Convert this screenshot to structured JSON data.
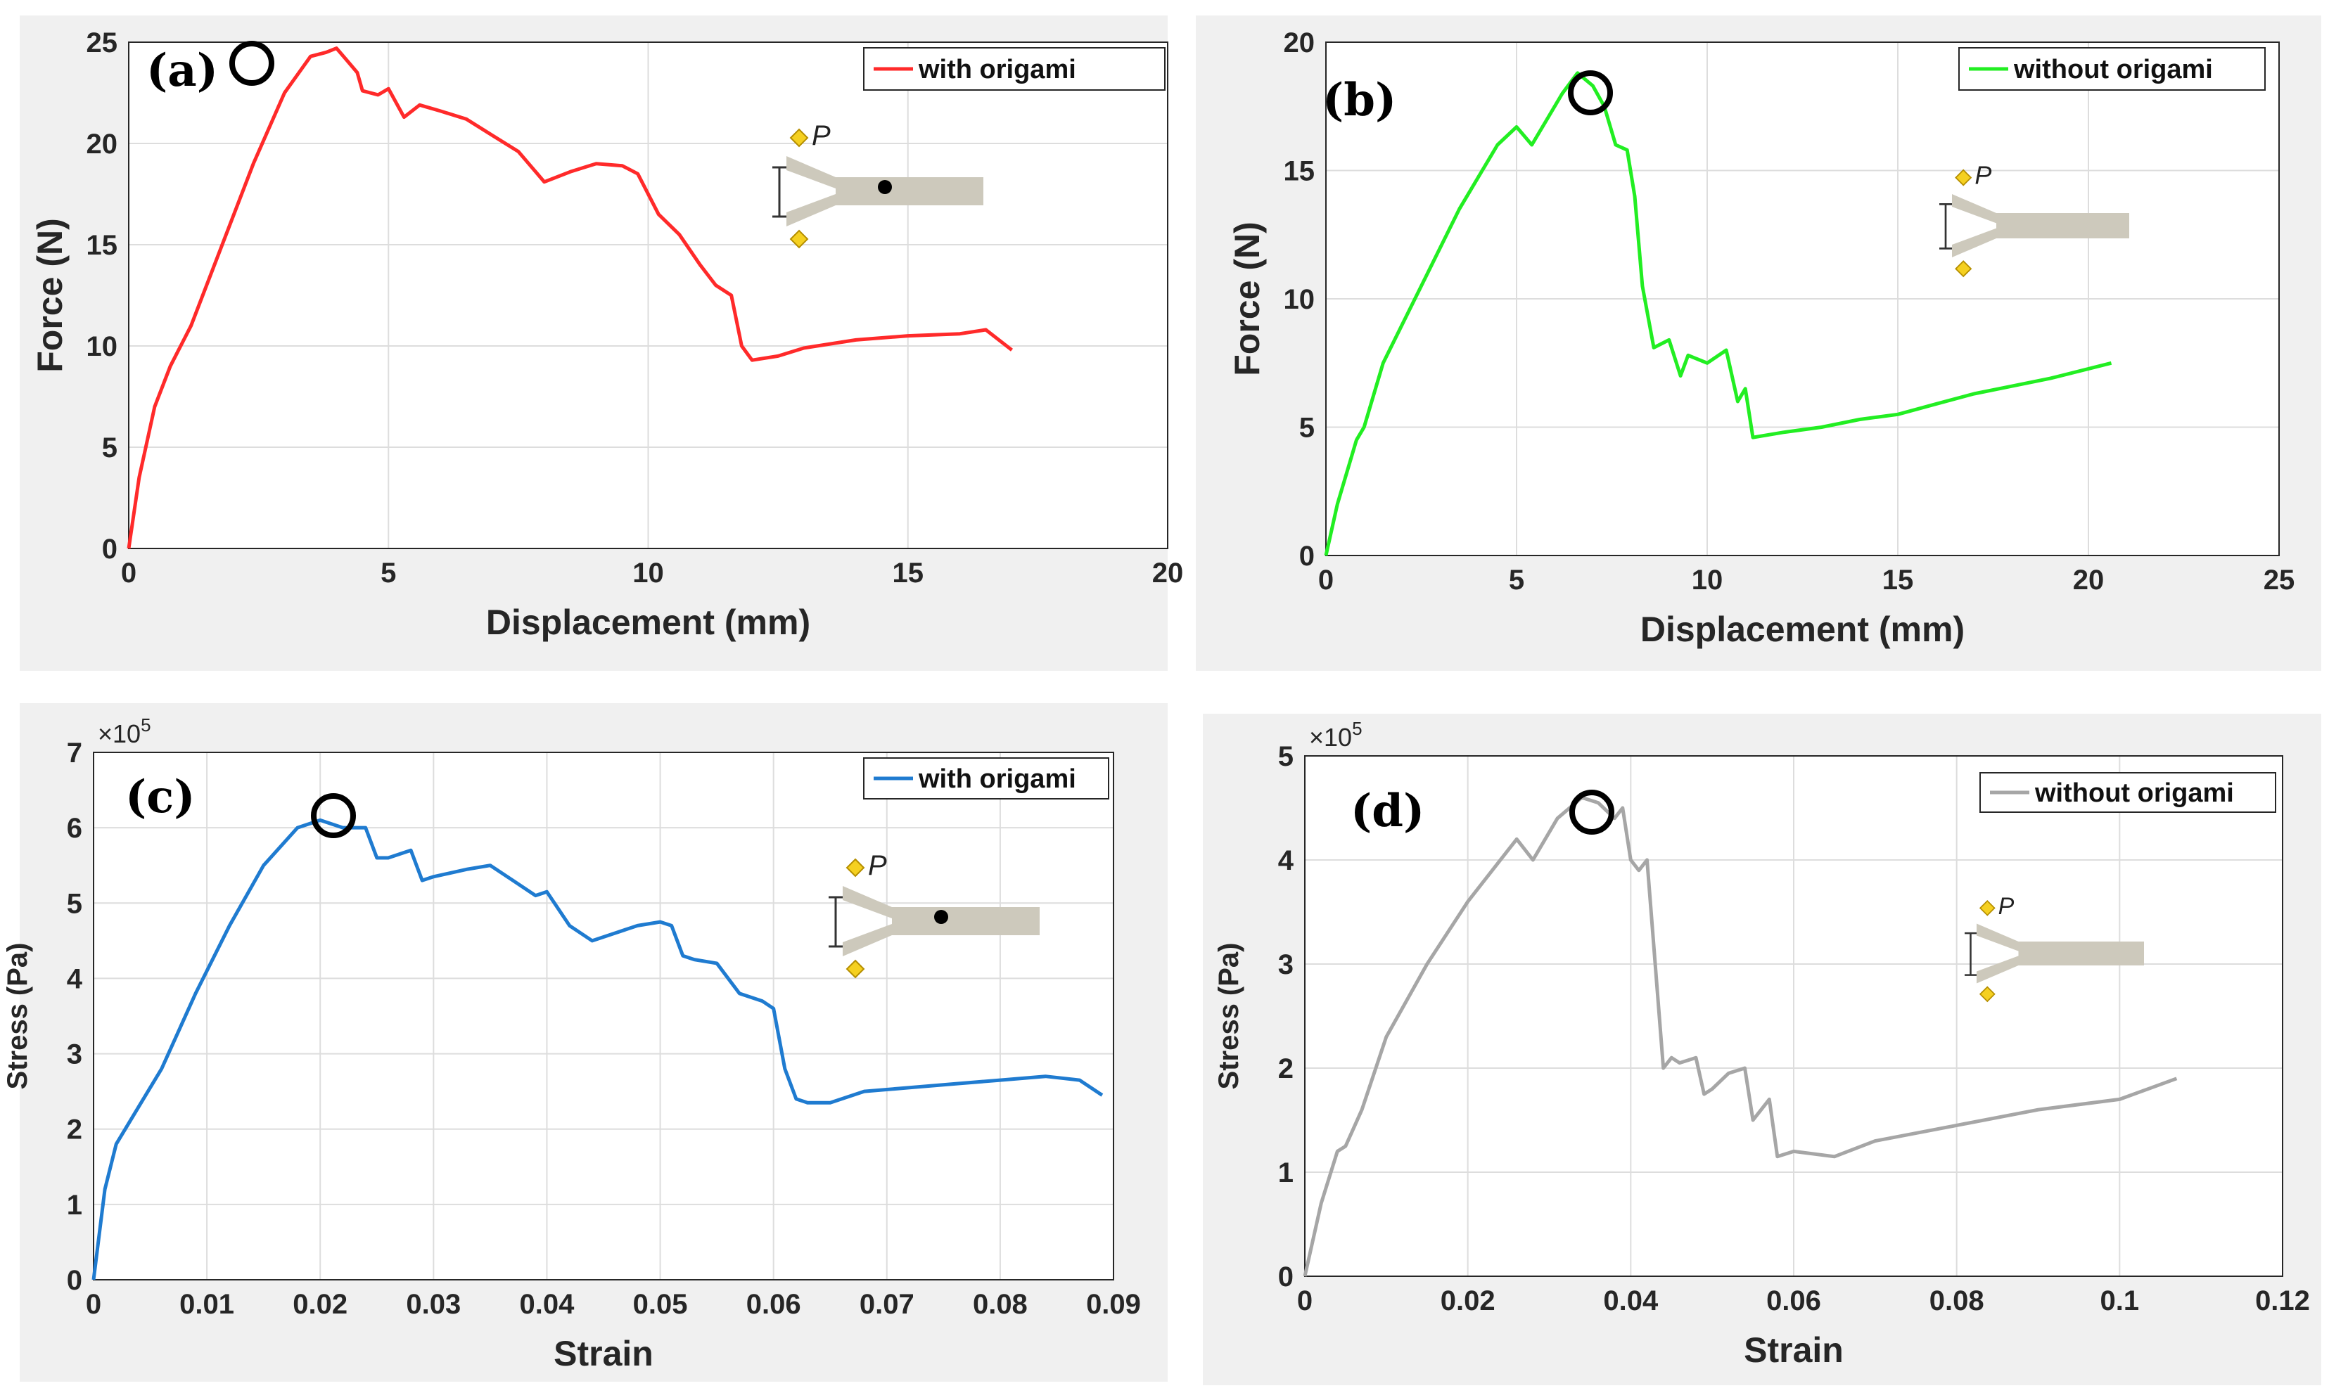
{
  "chart_data": [
    {
      "tag": "(a)",
      "type": "line",
      "xlabel": "Displacement (mm)",
      "ylabel": "Force (N)",
      "xlim": [
        0,
        20
      ],
      "ylim": [
        0,
        25
      ],
      "xticks": [
        "0",
        "5",
        "10",
        "15",
        "20"
      ],
      "yticks": [
        "0",
        "5",
        "10",
        "15",
        "20",
        "25"
      ],
      "exponent_label": "",
      "grid": true,
      "legend_position": "top-right",
      "color": "#ff2a2a",
      "series": [
        {
          "name": "with origami",
          "x": [
            0,
            0.2,
            0.5,
            0.8,
            1.2,
            1.8,
            2.4,
            3.0,
            3.5,
            3.8,
            4.0,
            4.2,
            4.4,
            4.5,
            4.8,
            5.0,
            5.3,
            5.6,
            6.0,
            6.5,
            7.0,
            7.5,
            8.0,
            8.5,
            9.0,
            9.5,
            9.8,
            10.2,
            10.6,
            11.0,
            11.3,
            11.6,
            11.8,
            12.0,
            12.5,
            13.0,
            13.5,
            14.0,
            15.0,
            16.0,
            16.5,
            17.0
          ],
          "y": [
            0,
            3.5,
            7.0,
            9.0,
            11.0,
            15.0,
            19.0,
            22.5,
            24.3,
            24.5,
            24.7,
            24.1,
            23.5,
            22.6,
            22.4,
            22.7,
            21.3,
            21.9,
            21.6,
            21.2,
            20.4,
            19.6,
            18.1,
            18.6,
            19.0,
            18.9,
            18.5,
            16.5,
            15.5,
            14.0,
            13.0,
            12.5,
            10.0,
            9.3,
            9.5,
            9.9,
            10.1,
            10.3,
            10.5,
            10.6,
            10.8,
            9.8
          ]
        }
      ]
    },
    {
      "tag": "(b)",
      "type": "line",
      "xlabel": "Displacement (mm)",
      "ylabel": "Force (N)",
      "xlim": [
        0,
        25
      ],
      "ylim": [
        0,
        20
      ],
      "xticks": [
        "0",
        "5",
        "10",
        "15",
        "20",
        "25"
      ],
      "yticks": [
        "0",
        "5",
        "10",
        "15",
        "20"
      ],
      "exponent_label": "",
      "grid": true,
      "legend_position": "top-right",
      "color": "#22ee22",
      "series": [
        {
          "name": "without origami",
          "x": [
            0,
            0.3,
            0.8,
            1.0,
            1.5,
            2.5,
            3.5,
            4.5,
            5.0,
            5.4,
            5.8,
            6.2,
            6.6,
            7.0,
            7.3,
            7.6,
            7.9,
            8.1,
            8.3,
            8.6,
            9.0,
            9.3,
            9.5,
            10.0,
            10.5,
            10.8,
            11.0,
            11.2,
            12.0,
            13.0,
            14.0,
            15.0,
            16.0,
            17.0,
            18.0,
            19.0,
            20.6
          ],
          "y": [
            0,
            2.0,
            4.5,
            5.0,
            7.5,
            10.5,
            13.5,
            16.0,
            16.7,
            16.0,
            17.0,
            18.0,
            18.8,
            18.3,
            17.5,
            16.0,
            15.8,
            14.0,
            10.5,
            8.1,
            8.4,
            7.0,
            7.8,
            7.5,
            8.0,
            6.0,
            6.5,
            4.6,
            4.8,
            5.0,
            5.3,
            5.5,
            5.9,
            6.3,
            6.6,
            6.9,
            7.5
          ]
        }
      ]
    },
    {
      "tag": "(c)",
      "type": "line",
      "xlabel": "Strain",
      "ylabel": "Stress (Pa)",
      "xlim": [
        0,
        0.09
      ],
      "ylim": [
        0,
        7
      ],
      "xticks": [
        "0",
        "0.01",
        "0.02",
        "0.03",
        "0.04",
        "0.05",
        "0.06",
        "0.07",
        "0.08",
        "0.09"
      ],
      "yticks": [
        "0",
        "1",
        "2",
        "3",
        "4",
        "5",
        "6",
        "7"
      ],
      "exponent_label": "×10",
      "exponent_power": "5",
      "grid": true,
      "legend_position": "top-right",
      "color": "#1f7bd0",
      "series": [
        {
          "name": "with origami",
          "x": [
            0,
            0.001,
            0.002,
            0.004,
            0.006,
            0.009,
            0.012,
            0.015,
            0.018,
            0.02,
            0.022,
            0.024,
            0.025,
            0.026,
            0.028,
            0.029,
            0.03,
            0.033,
            0.035,
            0.037,
            0.039,
            0.04,
            0.042,
            0.044,
            0.046,
            0.048,
            0.05,
            0.051,
            0.052,
            0.053,
            0.055,
            0.057,
            0.059,
            0.06,
            0.061,
            0.062,
            0.063,
            0.065,
            0.068,
            0.072,
            0.076,
            0.08,
            0.084,
            0.087,
            0.089
          ],
          "y": [
            0,
            1.2,
            1.8,
            2.3,
            2.8,
            3.8,
            4.7,
            5.5,
            6.0,
            6.1,
            6.0,
            6.0,
            5.6,
            5.6,
            5.7,
            5.3,
            5.35,
            5.45,
            5.5,
            5.3,
            5.1,
            5.15,
            4.7,
            4.5,
            4.6,
            4.7,
            4.75,
            4.7,
            4.3,
            4.25,
            4.2,
            3.8,
            3.7,
            3.6,
            2.8,
            2.4,
            2.35,
            2.35,
            2.5,
            2.55,
            2.6,
            2.65,
            2.7,
            2.65,
            2.45
          ]
        }
      ]
    },
    {
      "tag": "(d)",
      "type": "line",
      "xlabel": "Strain",
      "ylabel": "Stress (Pa)",
      "xlim": [
        0,
        0.12
      ],
      "ylim": [
        0,
        5
      ],
      "xticks": [
        "0",
        "0.02",
        "0.04",
        "0.06",
        "0.08",
        "0.1",
        "0.12"
      ],
      "yticks": [
        "0",
        "1",
        "2",
        "3",
        "4",
        "5"
      ],
      "exponent_label": "×10",
      "exponent_power": "5",
      "grid": true,
      "legend_position": "top-right",
      "color": "#a6a6a6",
      "series": [
        {
          "name": "without origami",
          "x": [
            0,
            0.002,
            0.004,
            0.005,
            0.007,
            0.01,
            0.015,
            0.02,
            0.025,
            0.026,
            0.028,
            0.031,
            0.034,
            0.036,
            0.038,
            0.039,
            0.04,
            0.041,
            0.042,
            0.043,
            0.044,
            0.045,
            0.046,
            0.048,
            0.049,
            0.05,
            0.052,
            0.054,
            0.055,
            0.056,
            0.057,
            0.058,
            0.06,
            0.065,
            0.07,
            0.08,
            0.09,
            0.1,
            0.107
          ],
          "y": [
            0,
            0.7,
            1.2,
            1.25,
            1.6,
            2.3,
            3.0,
            3.6,
            4.1,
            4.2,
            4.0,
            4.4,
            4.6,
            4.55,
            4.4,
            4.5,
            4.0,
            3.9,
            4.0,
            3.0,
            2.0,
            2.1,
            2.05,
            2.1,
            1.75,
            1.8,
            1.95,
            2.0,
            1.5,
            1.6,
            1.7,
            1.15,
            1.2,
            1.15,
            1.3,
            1.45,
            1.6,
            1.7,
            1.9
          ]
        }
      ]
    }
  ]
}
